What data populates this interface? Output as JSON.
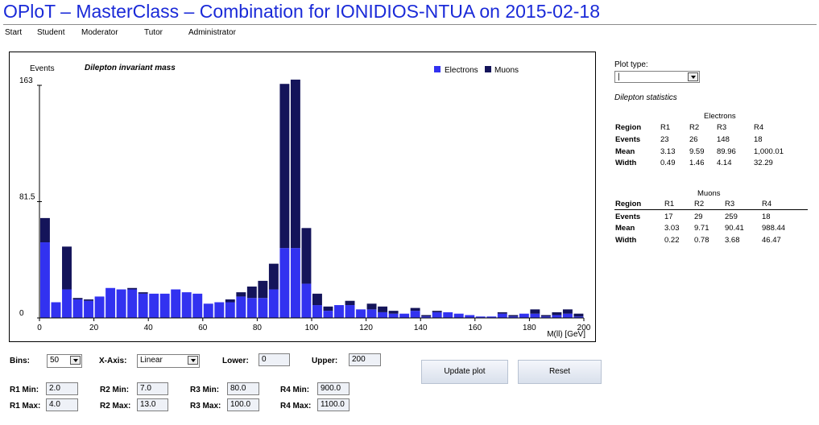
{
  "page": {
    "title": "OPloT – MasterClass – Combination for IONIDIOS-NTUA on 2015-02-18"
  },
  "nav": [
    "Start",
    "Student",
    "Moderator",
    "Tutor",
    "Administrator"
  ],
  "colors": {
    "electrons": "#3232f0",
    "muons": "#14145a",
    "title": "#1a2ad8"
  },
  "chart_data": {
    "type": "bar",
    "stacked": true,
    "title": "Dilepton invariant mass",
    "ylabel": "Events",
    "xlabel": "M(ll) [GeV]",
    "xlim": [
      0,
      200
    ],
    "ylim": [
      0,
      163
    ],
    "yticks": [
      "163",
      "81.5",
      "0"
    ],
    "xticks": [
      "0",
      "20",
      "40",
      "60",
      "80",
      "100",
      "120",
      "140",
      "160",
      "180",
      "200"
    ],
    "legend": {
      "position": "top-right",
      "entries": [
        "Electrons",
        "Muons"
      ]
    },
    "bin_width": 4,
    "x": [
      2,
      6,
      10,
      14,
      18,
      22,
      26,
      30,
      34,
      38,
      42,
      46,
      50,
      54,
      58,
      62,
      66,
      70,
      74,
      78,
      82,
      86,
      90,
      94,
      98,
      102,
      106,
      110,
      114,
      118,
      122,
      126,
      130,
      134,
      138,
      142,
      146,
      150,
      154,
      158,
      162,
      166,
      170,
      174,
      178,
      182,
      186,
      190,
      194,
      198
    ],
    "series": [
      {
        "name": "Electrons",
        "values": [
          53,
          11,
          20,
          13,
          12,
          15,
          21,
          20,
          20,
          17,
          17,
          17,
          20,
          18,
          17,
          10,
          11,
          11,
          15,
          14,
          14,
          20,
          49,
          49,
          24,
          9,
          5,
          9,
          9,
          6,
          6,
          4,
          3,
          3,
          5,
          1,
          4,
          4,
          3,
          2,
          1,
          1,
          3,
          1,
          3,
          3,
          1,
          2,
          3,
          1
        ]
      },
      {
        "name": "Muons",
        "values": [
          17,
          0,
          30,
          1,
          1,
          0,
          0,
          0,
          1,
          1,
          0,
          0,
          0,
          0,
          0,
          0,
          0,
          2,
          3,
          8,
          12,
          18,
          115,
          118,
          39,
          8,
          3,
          0,
          3,
          0,
          4,
          4,
          2,
          0,
          2,
          1,
          1,
          0,
          0,
          0,
          0,
          0,
          1,
          1,
          0,
          3,
          1,
          2,
          3,
          2
        ]
      }
    ]
  },
  "plot_type": {
    "label": "Plot type:",
    "value": "|"
  },
  "stats": {
    "heading": "Dilepton statistics",
    "electrons": {
      "title": "Electrons",
      "header": [
        "Region",
        "R1",
        "R2",
        "R3",
        "R4"
      ],
      "rows": [
        [
          "Events",
          "23",
          "26",
          "148",
          "18"
        ],
        [
          "Mean",
          "3.13",
          "9.59",
          "89.96",
          "1,000.01"
        ],
        [
          "Width",
          "0.49",
          "1.46",
          "4.14",
          "32.29"
        ]
      ]
    },
    "muons": {
      "title": "Muons",
      "header": [
        "Region",
        "R1",
        "R2",
        "R3",
        "R4"
      ],
      "rows": [
        [
          "Events",
          "17",
          "29",
          "259",
          "18"
        ],
        [
          "Mean",
          "3.03",
          "9.71",
          "90.41",
          "988.44"
        ],
        [
          "Width",
          "0.22",
          "0.78",
          "3.68",
          "46.47"
        ]
      ]
    }
  },
  "controls": {
    "bins_label": "Bins:",
    "bins_value": "50",
    "xaxis_label": "X-Axis:",
    "xaxis_value": "Linear",
    "lower_label": "Lower:",
    "lower_value": "0",
    "upper_label": "Upper:",
    "upper_value": "200",
    "r1_min_label": "R1 Min:",
    "r1_min": "2.0",
    "r1_max_label": "R1 Max:",
    "r1_max": "4.0",
    "r2_min_label": "R2 Min:",
    "r2_min": "7.0",
    "r2_max_label": "R2 Max:",
    "r2_max": "13.0",
    "r3_min_label": "R3 Min:",
    "r3_min": "80.0",
    "r3_max_label": "R3 Max:",
    "r3_max": "100.0",
    "r4_min_label": "R4 Min:",
    "r4_min": "900.0",
    "r4_max_label": "R4 Max:",
    "r4_max": "1100.0",
    "update_button": "Update plot",
    "reset_button": "Reset"
  }
}
